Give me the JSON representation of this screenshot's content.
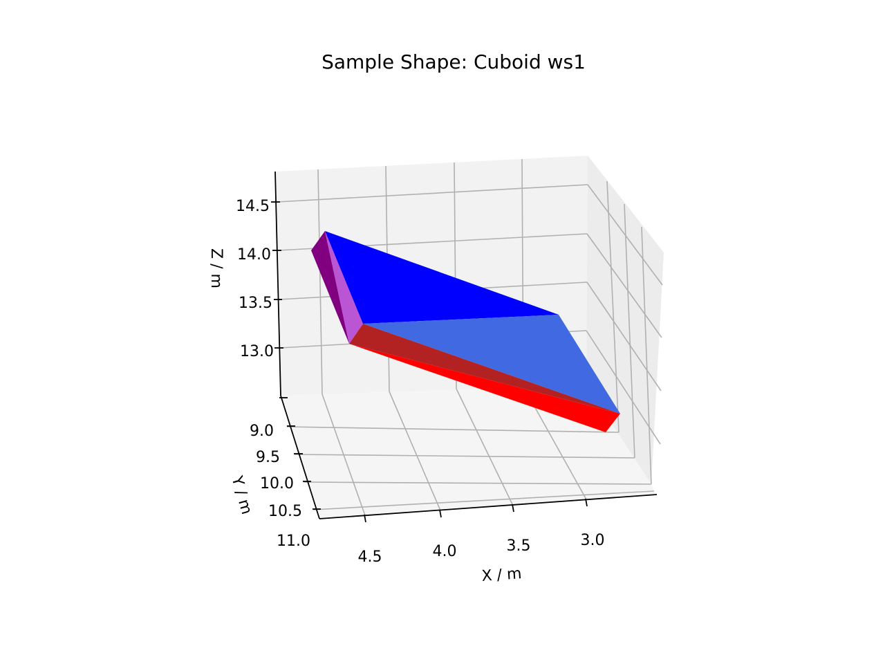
{
  "chart_data": {
    "type": "3d-polygon",
    "title": "Sample Shape: Cuboid ws1",
    "xlabel": "X / m",
    "ylabel": "Y / m",
    "zlabel": "Z / m",
    "x_ticks": [
      "4.5",
      "4.0",
      "3.5",
      "3.0"
    ],
    "y_ticks": [
      "9.0",
      "9.5",
      "10.0",
      "10.5",
      "11.0"
    ],
    "z_ticks": [
      "14.5",
      "14.0",
      "13.5",
      "13.0"
    ],
    "xlim": [
      2.8,
      4.8
    ],
    "ylim": [
      8.8,
      11.0
    ],
    "zlim": [
      12.5,
      14.8
    ],
    "grid": true,
    "faces": [
      {
        "name": "top-face",
        "color": "#0000ff"
      },
      {
        "name": "front-face",
        "color": "#4169e1"
      },
      {
        "name": "left-end-dark",
        "color": "#800080"
      },
      {
        "name": "left-end-light",
        "color": "#ba55d3"
      },
      {
        "name": "bottom-face-dark",
        "color": "#b22222"
      },
      {
        "name": "bottom-face",
        "color": "#ff0000"
      }
    ]
  }
}
